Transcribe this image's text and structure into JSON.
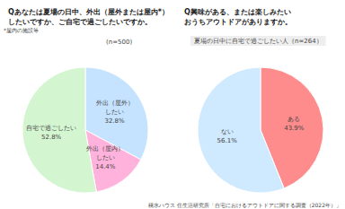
{
  "chart_data": [
    {
      "type": "pie",
      "title": "Qあなたは夏場の日中、外出（屋外または屋内*）\nしたいですか、ご自宅で過ごしたいですか。",
      "note": "*屋内の施設等",
      "subtitle": "(n=500)",
      "categories": [
        "外出（屋外）\nしたい",
        "外出（屋内）\nしたい",
        "自宅で過ごしたい"
      ],
      "values": [
        32.8,
        14.4,
        52.8
      ],
      "value_labels": [
        "32.8%",
        "14.4%",
        "52.8%"
      ],
      "colors": [
        "#c5e3ff",
        "#ffb3dc",
        "#d3f5cf"
      ],
      "data_labels": true
    },
    {
      "type": "pie",
      "title": "Q興味がある、または楽しみたい\nおうちアウトドアがありますか。",
      "subtitle": "夏場の日中に自宅で過ごしたい人（n=264）",
      "categories": [
        "ある",
        "ない"
      ],
      "values": [
        43.9,
        56.1
      ],
      "value_labels": [
        "43.9%",
        "56.1%"
      ],
      "colors": [
        "#ff8c8c",
        "#cfe9ff"
      ],
      "data_labels": true,
      "source": "積水ハウス 住生活研究所「自宅におけるアウトドアに関する調査（2022年）」"
    }
  ]
}
